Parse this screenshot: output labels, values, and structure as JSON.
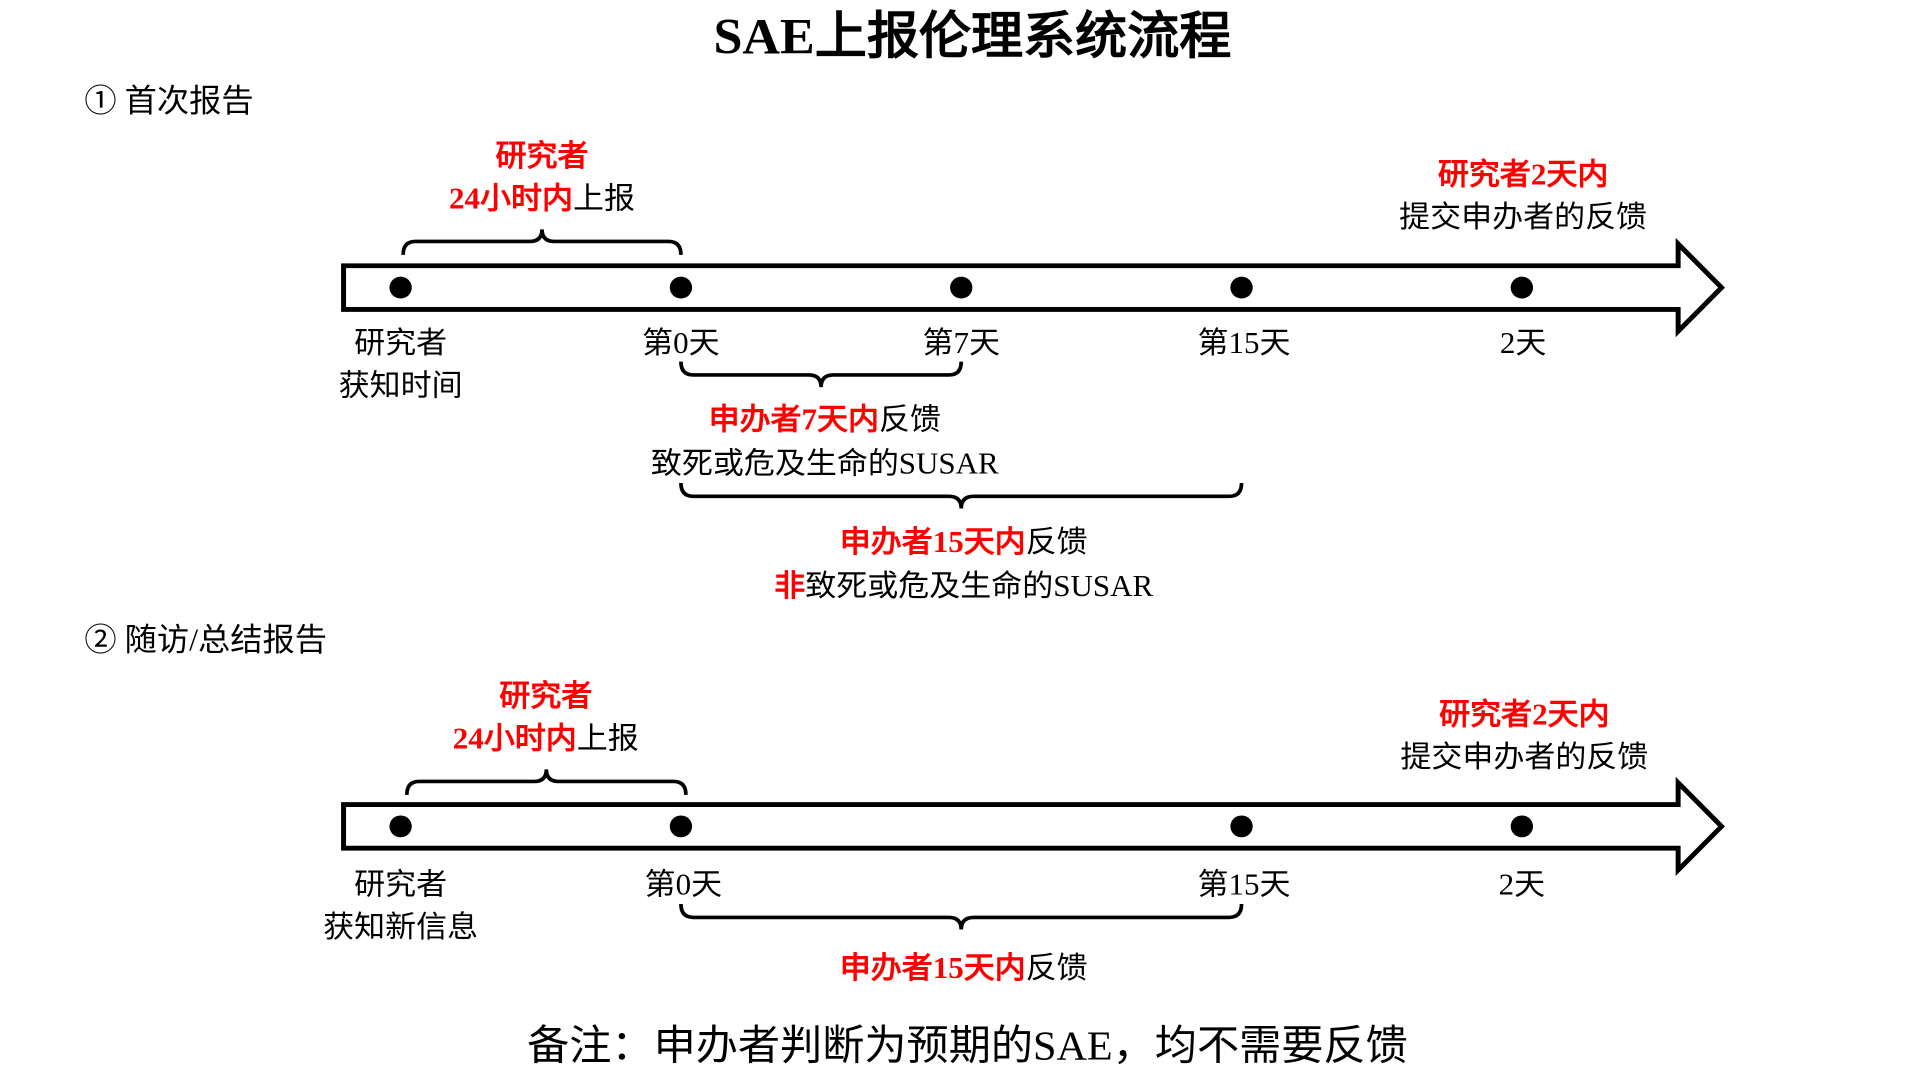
{
  "title": "SAE上报伦理系统流程",
  "colors": {
    "highlight": "#ff0000",
    "text": "#000000"
  },
  "section1": {
    "heading": "① 首次报告",
    "investigator_report": {
      "line1": "研究者",
      "line2_red": "24小时内",
      "line2_black": "上报"
    },
    "investigator_feedback": {
      "line1": "研究者2天内",
      "line2": "提交申办者的反馈"
    },
    "points": [
      "研究者",
      "获知时间",
      "第0天",
      "第7天",
      "第15天",
      "2天"
    ],
    "sponsor7": {
      "red": "申办者7天内",
      "black": "反馈",
      "line2": "致死或危及生命的SUSAR"
    },
    "sponsor15": {
      "red": "申办者15天内",
      "black": "反馈",
      "line2_red": "非",
      "line2_black": "致死或危及生命的SUSAR"
    }
  },
  "section2": {
    "heading": "② 随访/总结报告",
    "investigator_report": {
      "line1": "研究者",
      "line2_red": "24小时内",
      "line2_black": "上报"
    },
    "investigator_feedback": {
      "line1": "研究者2天内",
      "line2": "提交申办者的反馈"
    },
    "points": [
      "研究者",
      "获知新信息",
      "第0天",
      "第15天",
      "2天"
    ],
    "sponsor15": {
      "red": "申办者15天内",
      "black": "反馈"
    }
  },
  "note": "备注：申办者判断为预期的SAE，均不需要反馈"
}
